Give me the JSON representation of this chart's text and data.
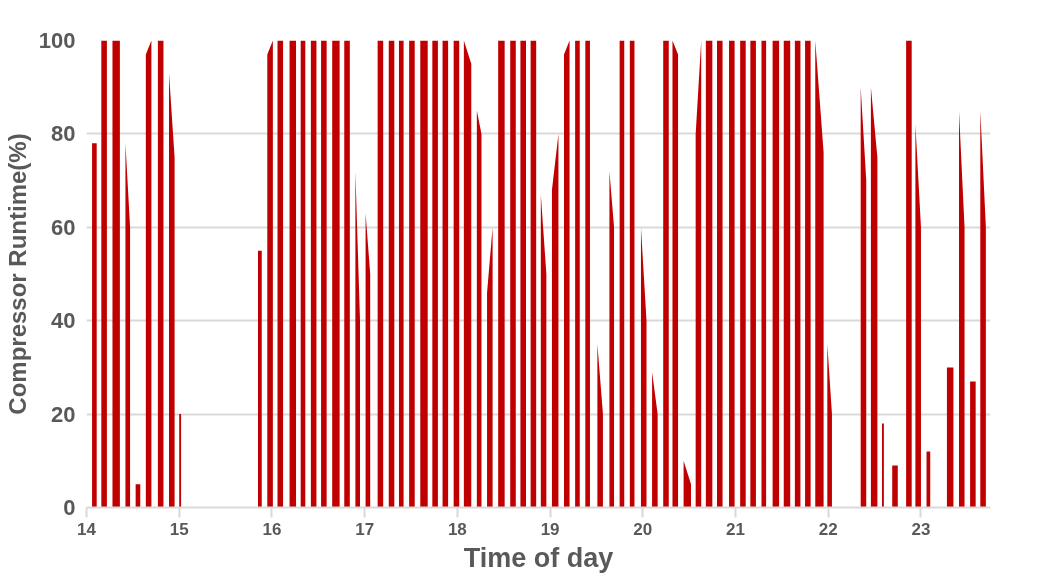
{
  "chart_data": {
    "type": "area",
    "xlabel": "Time of day",
    "ylabel": "Compressor Runtime(%)",
    "xlim": [
      14,
      23.75
    ],
    "xticks": [
      14,
      15,
      16,
      17,
      18,
      19,
      20,
      21,
      22,
      23
    ],
    "ylim": [
      0,
      100
    ],
    "yticks": [
      0,
      20,
      40,
      60,
      80,
      100
    ],
    "grid": "y",
    "series": [
      {
        "color": "#c00000",
        "x": [
          14.06,
          14.06,
          14.11,
          14.11,
          14.16,
          14.16,
          14.22,
          14.22,
          14.28,
          14.28,
          14.36,
          14.36,
          14.42,
          14.42,
          14.47,
          14.47,
          14.53,
          14.53,
          14.58,
          14.58,
          14.64,
          14.64,
          14.7,
          14.7,
          14.77,
          14.77,
          14.83,
          14.83,
          14.89,
          14.89,
          14.95,
          14.95,
          15.0,
          15.0,
          15.02,
          15.02,
          15.85,
          15.85,
          15.89,
          15.89,
          15.95,
          15.95,
          16.01,
          16.01,
          16.06,
          16.06,
          16.12,
          16.12,
          16.19,
          16.19,
          16.26,
          16.26,
          16.31,
          16.31,
          16.36,
          16.36,
          16.42,
          16.42,
          16.48,
          16.48,
          16.53,
          16.53,
          16.59,
          16.59,
          16.65,
          16.65,
          16.73,
          16.73,
          16.78,
          16.78,
          16.84,
          16.84,
          16.9,
          16.9,
          16.95,
          16.95,
          17.01,
          17.01,
          17.06,
          17.06,
          17.14,
          17.14,
          17.2,
          17.2,
          17.26,
          17.26,
          17.32,
          17.32,
          17.37,
          17.37,
          17.42,
          17.42,
          17.48,
          17.48,
          17.54,
          17.54,
          17.6,
          17.6,
          17.68,
          17.68,
          17.73,
          17.73,
          17.79,
          17.79,
          17.84,
          17.84,
          17.9,
          17.9,
          17.96,
          17.96,
          18.02,
          18.02,
          18.07,
          18.07,
          18.15,
          18.15,
          18.21,
          18.21,
          18.26,
          18.26,
          18.32,
          18.32,
          18.38,
          18.38,
          18.44,
          18.44,
          18.51,
          18.51,
          18.57,
          18.57,
          18.63,
          18.63,
          18.68,
          18.68,
          18.74,
          18.74,
          18.79,
          18.79,
          18.85,
          18.85,
          18.9,
          18.9,
          18.96,
          18.96,
          19.02,
          19.02,
          19.09,
          19.09,
          19.15,
          19.15,
          19.21,
          19.21,
          19.27,
          19.27,
          19.32,
          19.32,
          19.38,
          19.38,
          19.43,
          19.43,
          19.51,
          19.51,
          19.57,
          19.57,
          19.64,
          19.64,
          19.69,
          19.69,
          19.75,
          19.75,
          19.8,
          19.8,
          19.86,
          19.86,
          19.91,
          19.91,
          19.98,
          19.98,
          20.04,
          20.04,
          20.1,
          20.1,
          20.16,
          20.16,
          20.22,
          20.22,
          20.28,
          20.28,
          20.32,
          20.32,
          20.38,
          20.38,
          20.44,
          20.44,
          20.52,
          20.52,
          20.57,
          20.57,
          20.63,
          20.63,
          20.68,
          20.68,
          20.75,
          20.75,
          20.8,
          20.8,
          20.86,
          20.86,
          20.93,
          20.93,
          20.99,
          20.99,
          21.05,
          21.05,
          21.11,
          21.11,
          21.16,
          21.16,
          21.22,
          21.22,
          21.28,
          21.28,
          21.33,
          21.33,
          21.4,
          21.4,
          21.47,
          21.47,
          21.52,
          21.52,
          21.59,
          21.59,
          21.64,
          21.64,
          21.7,
          21.7,
          21.75,
          21.75,
          21.81,
          21.81,
          21.86,
          21.86,
          21.95,
          21.95,
          21.99,
          21.99,
          22.04,
          22.04,
          22.35,
          22.35,
          22.41,
          22.41,
          22.46,
          22.46,
          22.53,
          22.53,
          22.58,
          22.58,
          22.6,
          22.6,
          22.69,
          22.69,
          22.75,
          22.75,
          22.84,
          22.84,
          22.9,
          22.9,
          22.94,
          22.94,
          23.0,
          23.0,
          23.06,
          23.06,
          23.1,
          23.1,
          23.28,
          23.28,
          23.35,
          23.35,
          23.41,
          23.41,
          23.47,
          23.47,
          23.53,
          23.53,
          23.59,
          23.59,
          23.64,
          23.64,
          23.7,
          23.7
        ],
        "values": [
          0,
          78,
          78,
          0,
          0,
          100,
          100,
          0,
          0,
          100,
          100,
          0,
          0,
          78,
          60,
          0,
          0,
          5,
          5,
          0,
          0,
          97,
          100,
          0,
          0,
          100,
          100,
          0,
          0,
          93,
          75,
          0,
          0,
          20,
          20,
          0,
          0,
          55,
          55,
          0,
          0,
          97,
          100,
          0,
          0,
          100,
          100,
          0,
          0,
          100,
          100,
          0,
          0,
          100,
          100,
          0,
          0,
          100,
          100,
          0,
          0,
          100,
          100,
          0,
          0,
          100,
          100,
          0,
          0,
          100,
          100,
          0,
          0,
          72,
          40,
          0,
          0,
          63,
          50,
          0,
          0,
          100,
          100,
          0,
          0,
          100,
          100,
          0,
          0,
          100,
          100,
          0,
          0,
          100,
          100,
          0,
          0,
          100,
          100,
          0,
          0,
          100,
          100,
          0,
          0,
          100,
          100,
          0,
          0,
          100,
          100,
          0,
          0,
          100,
          95,
          0,
          0,
          85,
          80,
          0,
          0,
          46,
          60,
          0,
          0,
          100,
          100,
          0,
          0,
          100,
          100,
          0,
          0,
          100,
          100,
          0,
          0,
          100,
          100,
          0,
          0,
          67,
          50,
          0,
          0,
          68,
          80,
          0,
          0,
          97,
          100,
          0,
          0,
          100,
          100,
          0,
          0,
          100,
          100,
          0,
          0,
          35,
          20,
          0,
          0,
          72,
          60,
          0,
          0,
          100,
          100,
          0,
          0,
          100,
          100,
          0,
          0,
          60,
          40,
          0,
          0,
          29,
          20,
          0,
          0,
          100,
          100,
          0,
          0,
          100,
          97,
          0,
          0,
          10,
          5,
          0,
          0,
          80,
          100,
          0,
          0,
          100,
          100,
          0,
          0,
          100,
          100,
          0,
          0,
          100,
          100,
          0,
          0,
          100,
          100,
          0,
          0,
          100,
          100,
          0,
          0,
          100,
          100,
          0,
          0,
          100,
          100,
          0,
          0,
          100,
          100,
          0,
          0,
          100,
          100,
          0,
          0,
          100,
          100,
          0,
          0,
          100,
          76,
          0,
          0,
          35,
          20,
          0,
          0,
          90,
          70,
          0,
          0,
          90,
          75,
          0,
          0,
          18,
          18,
          0,
          0,
          9,
          9,
          0,
          0,
          100,
          100,
          0,
          0,
          82,
          60,
          0,
          0,
          12,
          12,
          0,
          0,
          30,
          30,
          0,
          0,
          85,
          60,
          0,
          0,
          27,
          27,
          0,
          0,
          85,
          60,
          0
        ]
      }
    ]
  }
}
